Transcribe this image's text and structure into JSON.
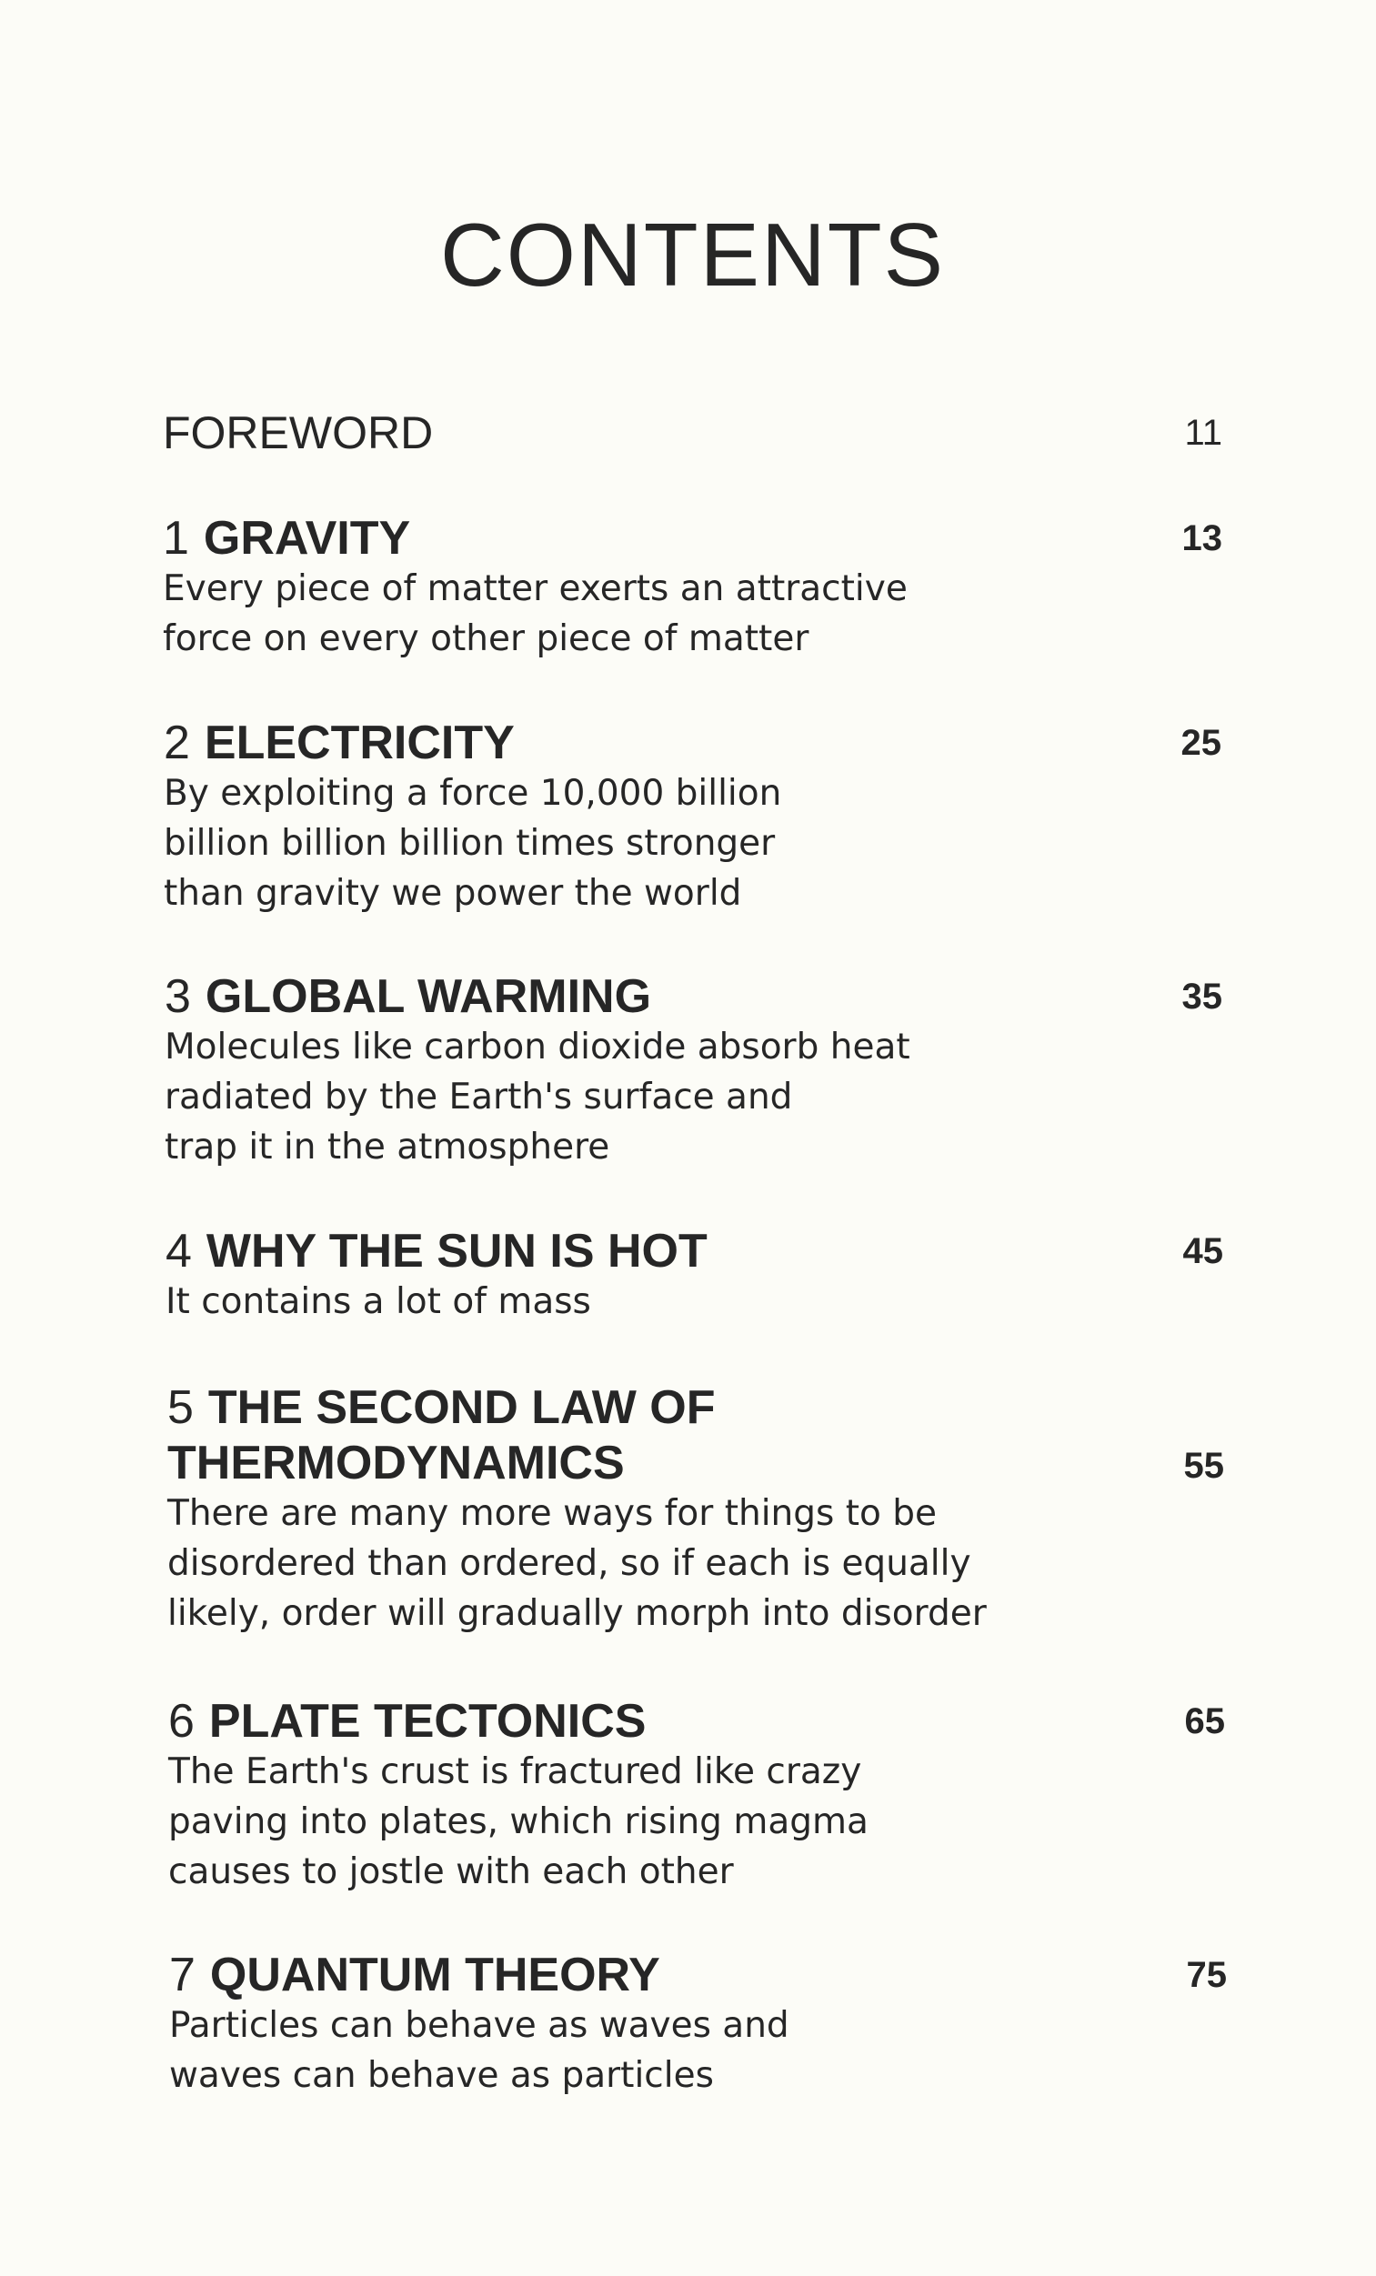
{
  "title": "CONTENTS",
  "foreword": {
    "label": "FOREWORD",
    "page": "11"
  },
  "chapters": [
    {
      "number": "1",
      "title": "GRAVITY",
      "page": "13",
      "description": [
        "Every piece of matter exerts an attractive",
        "force on every other piece of matter"
      ]
    },
    {
      "number": "2",
      "title": "ELECTRICITY",
      "page": "25",
      "description": [
        "By exploiting a force 10,000 billion",
        "billion billion billion times stronger",
        "than gravity we power the world"
      ]
    },
    {
      "number": "3",
      "title": "GLOBAL WARMING",
      "page": "35",
      "description": [
        "Molecules like carbon dioxide absorb heat",
        "radiated by the Earth's surface and",
        "trap it in the atmosphere"
      ]
    },
    {
      "number": "4",
      "title": "WHY THE SUN IS HOT",
      "page": "45",
      "description": [
        "It contains a lot of mass"
      ]
    },
    {
      "number": "5",
      "title": [
        "THE SECOND LAW OF",
        "THERMODYNAMICS"
      ],
      "page": "55",
      "description": [
        "There are many more ways for things to be",
        "disordered than ordered, so if each is equally",
        "likely, order will gradually morph into disorder"
      ]
    },
    {
      "number": "6",
      "title": "PLATE TECTONICS",
      "page": "65",
      "description": [
        "The Earth's crust is fractured like crazy",
        "paving into plates, which rising magma",
        "causes to jostle with each other"
      ]
    },
    {
      "number": "7",
      "title": "QUANTUM THEORY",
      "page": "75",
      "description": [
        "Particles can behave as waves and",
        "waves can behave as particles"
      ]
    }
  ]
}
